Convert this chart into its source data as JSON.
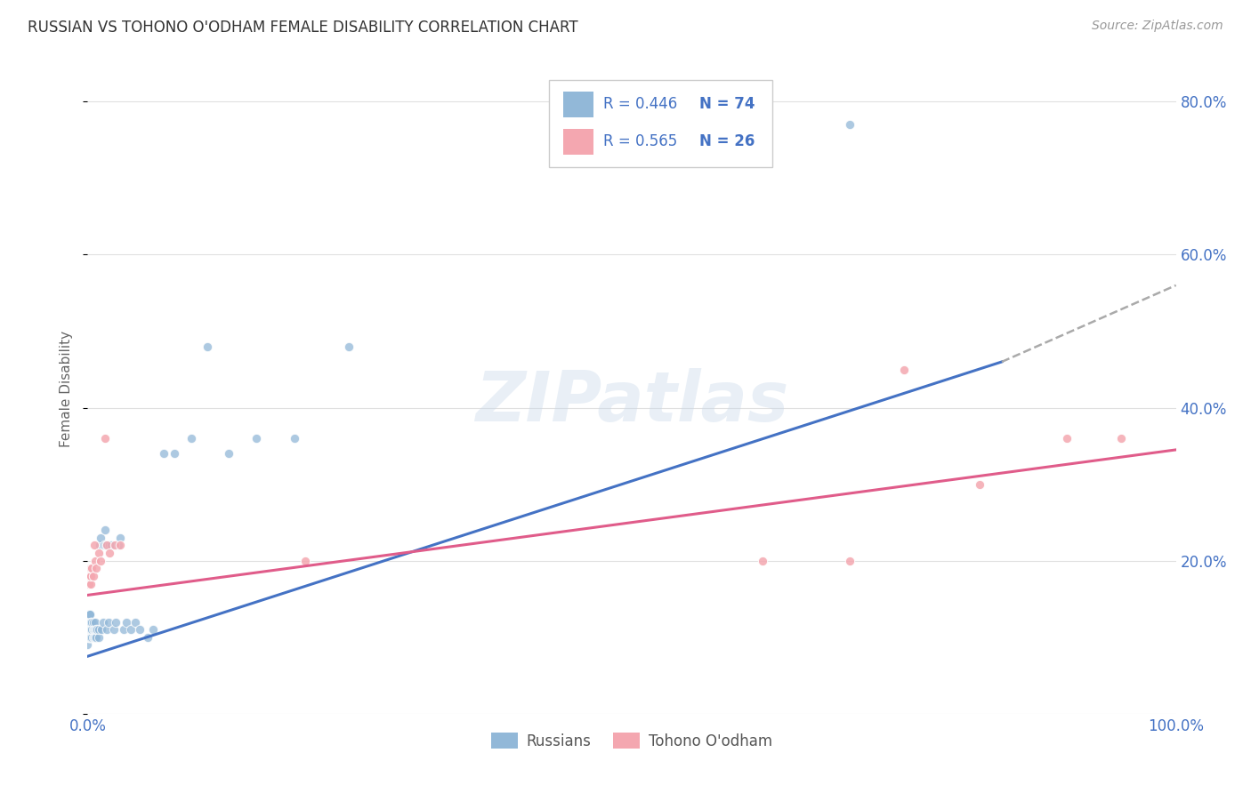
{
  "title": "RUSSIAN VS TOHONO O'ODHAM FEMALE DISABILITY CORRELATION CHART",
  "source": "Source: ZipAtlas.com",
  "ylabel": "Female Disability",
  "xlim": [
    0.0,
    1.0
  ],
  "ylim": [
    0.0,
    0.85
  ],
  "russian_color": "#92b8d8",
  "tohono_color": "#f4a7b0",
  "russian_line_color": "#4472c4",
  "tohono_line_color": "#e05c8a",
  "dashed_line_color": "#aaaaaa",
  "background_color": "#ffffff",
  "grid_color": "#e0e0e0",
  "watermark": "ZIPatlas",
  "russians_x": [
    0.0,
    0.0,
    0.001,
    0.001,
    0.001,
    0.001,
    0.001,
    0.001,
    0.001,
    0.001,
    0.001,
    0.001,
    0.002,
    0.002,
    0.002,
    0.002,
    0.002,
    0.002,
    0.002,
    0.002,
    0.003,
    0.003,
    0.003,
    0.003,
    0.003,
    0.003,
    0.004,
    0.004,
    0.004,
    0.004,
    0.005,
    0.005,
    0.005,
    0.006,
    0.006,
    0.007,
    0.007,
    0.007,
    0.008,
    0.008,
    0.009,
    0.01,
    0.01,
    0.011,
    0.012,
    0.013,
    0.014,
    0.015,
    0.016,
    0.017,
    0.018,
    0.019,
    0.02,
    0.022,
    0.024,
    0.026,
    0.028,
    0.03,
    0.033,
    0.036,
    0.04,
    0.044,
    0.048,
    0.055,
    0.06,
    0.07,
    0.08,
    0.095,
    0.11,
    0.13,
    0.155,
    0.19,
    0.24,
    0.7
  ],
  "russians_y": [
    0.09,
    0.1,
    0.1,
    0.1,
    0.1,
    0.11,
    0.11,
    0.11,
    0.12,
    0.12,
    0.13,
    0.13,
    0.1,
    0.1,
    0.11,
    0.11,
    0.11,
    0.12,
    0.13,
    0.13,
    0.1,
    0.1,
    0.11,
    0.11,
    0.12,
    0.12,
    0.1,
    0.11,
    0.11,
    0.12,
    0.1,
    0.11,
    0.12,
    0.1,
    0.11,
    0.1,
    0.11,
    0.12,
    0.1,
    0.11,
    0.11,
    0.1,
    0.11,
    0.22,
    0.23,
    0.11,
    0.12,
    0.22,
    0.24,
    0.22,
    0.11,
    0.12,
    0.22,
    0.22,
    0.11,
    0.12,
    0.22,
    0.23,
    0.11,
    0.12,
    0.11,
    0.12,
    0.11,
    0.1,
    0.11,
    0.34,
    0.34,
    0.36,
    0.48,
    0.34,
    0.36,
    0.36,
    0.48,
    0.77
  ],
  "tohono_x": [
    0.001,
    0.001,
    0.002,
    0.002,
    0.003,
    0.003,
    0.003,
    0.004,
    0.005,
    0.006,
    0.007,
    0.008,
    0.01,
    0.012,
    0.016,
    0.018,
    0.02,
    0.025,
    0.03,
    0.2,
    0.62,
    0.7,
    0.75,
    0.82,
    0.9,
    0.95
  ],
  "tohono_y": [
    0.17,
    0.18,
    0.18,
    0.19,
    0.17,
    0.18,
    0.19,
    0.19,
    0.18,
    0.22,
    0.2,
    0.19,
    0.21,
    0.2,
    0.36,
    0.22,
    0.21,
    0.22,
    0.22,
    0.2,
    0.2,
    0.2,
    0.45,
    0.3,
    0.36,
    0.36
  ],
  "russian_line_x": [
    0.0,
    0.84
  ],
  "russian_line_y": [
    0.075,
    0.46
  ],
  "tohono_line_x": [
    0.0,
    1.0
  ],
  "tohono_line_y": [
    0.155,
    0.345
  ],
  "dashed_line_x": [
    0.84,
    1.0
  ],
  "dashed_line_y": [
    0.46,
    0.56
  ],
  "yticks": [
    0.0,
    0.2,
    0.4,
    0.6,
    0.8
  ],
  "ytick_labels": [
    "",
    "20.0%",
    "40.0%",
    "60.0%",
    "80.0%"
  ]
}
